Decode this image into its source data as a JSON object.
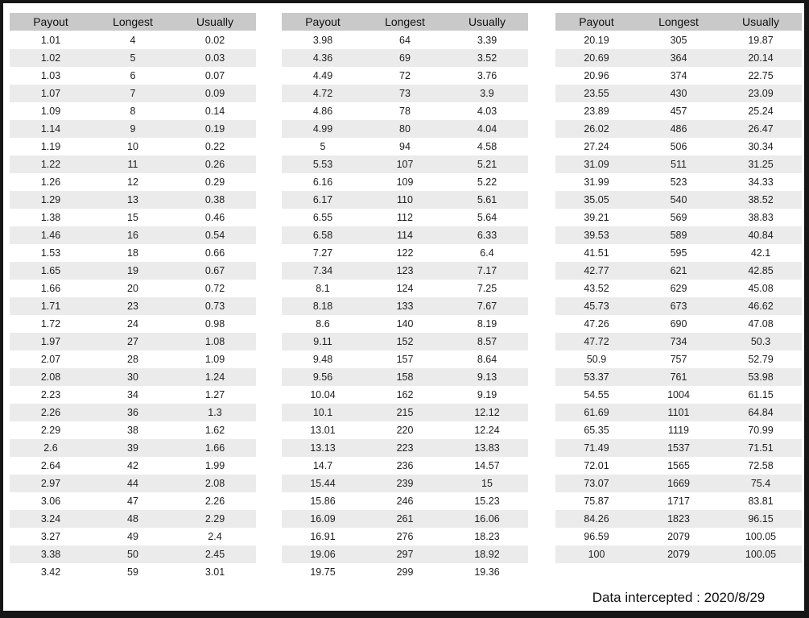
{
  "footer": "Data intercepted : 2020/8/29",
  "colors": {
    "frame_border": "#161616",
    "header_bg": "#c9c9c9",
    "stripe_bg": "#ebebeb",
    "text": "#1f1f1f"
  },
  "chart_data": [
    {
      "type": "table",
      "columns": [
        "Payout",
        "Longest",
        "Usually"
      ],
      "rows": [
        [
          "1.01",
          "4",
          "0.02"
        ],
        [
          "1.02",
          "5",
          "0.03"
        ],
        [
          "1.03",
          "6",
          "0.07"
        ],
        [
          "1.07",
          "7",
          "0.09"
        ],
        [
          "1.09",
          "8",
          "0.14"
        ],
        [
          "1.14",
          "9",
          "0.19"
        ],
        [
          "1.19",
          "10",
          "0.22"
        ],
        [
          "1.22",
          "11",
          "0.26"
        ],
        [
          "1.26",
          "12",
          "0.29"
        ],
        [
          "1.29",
          "13",
          "0.38"
        ],
        [
          "1.38",
          "15",
          "0.46"
        ],
        [
          "1.46",
          "16",
          "0.54"
        ],
        [
          "1.53",
          "18",
          "0.66"
        ],
        [
          "1.65",
          "19",
          "0.67"
        ],
        [
          "1.66",
          "20",
          "0.72"
        ],
        [
          "1.71",
          "23",
          "0.73"
        ],
        [
          "1.72",
          "24",
          "0.98"
        ],
        [
          "1.97",
          "27",
          "1.08"
        ],
        [
          "2.07",
          "28",
          "1.09"
        ],
        [
          "2.08",
          "30",
          "1.24"
        ],
        [
          "2.23",
          "34",
          "1.27"
        ],
        [
          "2.26",
          "36",
          "1.3"
        ],
        [
          "2.29",
          "38",
          "1.62"
        ],
        [
          "2.6",
          "39",
          "1.66"
        ],
        [
          "2.64",
          "42",
          "1.99"
        ],
        [
          "2.97",
          "44",
          "2.08"
        ],
        [
          "3.06",
          "47",
          "2.26"
        ],
        [
          "3.24",
          "48",
          "2.29"
        ],
        [
          "3.27",
          "49",
          "2.4"
        ],
        [
          "3.38",
          "50",
          "2.45"
        ],
        [
          "3.42",
          "59",
          "3.01"
        ]
      ]
    },
    {
      "type": "table",
      "columns": [
        "Payout",
        "Longest",
        "Usually"
      ],
      "rows": [
        [
          "3.98",
          "64",
          "3.39"
        ],
        [
          "4.36",
          "69",
          "3.52"
        ],
        [
          "4.49",
          "72",
          "3.76"
        ],
        [
          "4.72",
          "73",
          "3.9"
        ],
        [
          "4.86",
          "78",
          "4.03"
        ],
        [
          "4.99",
          "80",
          "4.04"
        ],
        [
          "5",
          "94",
          "4.58"
        ],
        [
          "5.53",
          "107",
          "5.21"
        ],
        [
          "6.16",
          "109",
          "5.22"
        ],
        [
          "6.17",
          "110",
          "5.61"
        ],
        [
          "6.55",
          "112",
          "5.64"
        ],
        [
          "6.58",
          "114",
          "6.33"
        ],
        [
          "7.27",
          "122",
          "6.4"
        ],
        [
          "7.34",
          "123",
          "7.17"
        ],
        [
          "8.1",
          "124",
          "7.25"
        ],
        [
          "8.18",
          "133",
          "7.67"
        ],
        [
          "8.6",
          "140",
          "8.19"
        ],
        [
          "9.11",
          "152",
          "8.57"
        ],
        [
          "9.48",
          "157",
          "8.64"
        ],
        [
          "9.56",
          "158",
          "9.13"
        ],
        [
          "10.04",
          "162",
          "9.19"
        ],
        [
          "10.1",
          "215",
          "12.12"
        ],
        [
          "13.01",
          "220",
          "12.24"
        ],
        [
          "13.13",
          "223",
          "13.83"
        ],
        [
          "14.7",
          "236",
          "14.57"
        ],
        [
          "15.44",
          "239",
          "15"
        ],
        [
          "15.86",
          "246",
          "15.23"
        ],
        [
          "16.09",
          "261",
          "16.06"
        ],
        [
          "16.91",
          "276",
          "18.23"
        ],
        [
          "19.06",
          "297",
          "18.92"
        ],
        [
          "19.75",
          "299",
          "19.36"
        ]
      ]
    },
    {
      "type": "table",
      "columns": [
        "Payout",
        "Longest",
        "Usually"
      ],
      "rows": [
        [
          "20.19",
          "305",
          "19.87"
        ],
        [
          "20.69",
          "364",
          "20.14"
        ],
        [
          "20.96",
          "374",
          "22.75"
        ],
        [
          "23.55",
          "430",
          "23.09"
        ],
        [
          "23.89",
          "457",
          "25.24"
        ],
        [
          "26.02",
          "486",
          "26.47"
        ],
        [
          "27.24",
          "506",
          "30.34"
        ],
        [
          "31.09",
          "511",
          "31.25"
        ],
        [
          "31.99",
          "523",
          "34.33"
        ],
        [
          "35.05",
          "540",
          "38.52"
        ],
        [
          "39.21",
          "569",
          "38.83"
        ],
        [
          "39.53",
          "589",
          "40.84"
        ],
        [
          "41.51",
          "595",
          "42.1"
        ],
        [
          "42.77",
          "621",
          "42.85"
        ],
        [
          "43.52",
          "629",
          "45.08"
        ],
        [
          "45.73",
          "673",
          "46.62"
        ],
        [
          "47.26",
          "690",
          "47.08"
        ],
        [
          "47.72",
          "734",
          "50.3"
        ],
        [
          "50.9",
          "757",
          "52.79"
        ],
        [
          "53.37",
          "761",
          "53.98"
        ],
        [
          "54.55",
          "1004",
          "61.15"
        ],
        [
          "61.69",
          "1101",
          "64.84"
        ],
        [
          "65.35",
          "1119",
          "70.99"
        ],
        [
          "71.49",
          "1537",
          "71.51"
        ],
        [
          "72.01",
          "1565",
          "72.58"
        ],
        [
          "73.07",
          "1669",
          "75.4"
        ],
        [
          "75.87",
          "1717",
          "83.81"
        ],
        [
          "84.26",
          "1823",
          "96.15"
        ],
        [
          "96.59",
          "2079",
          "100.05"
        ],
        [
          "100",
          "2079",
          "100.05"
        ]
      ]
    }
  ]
}
